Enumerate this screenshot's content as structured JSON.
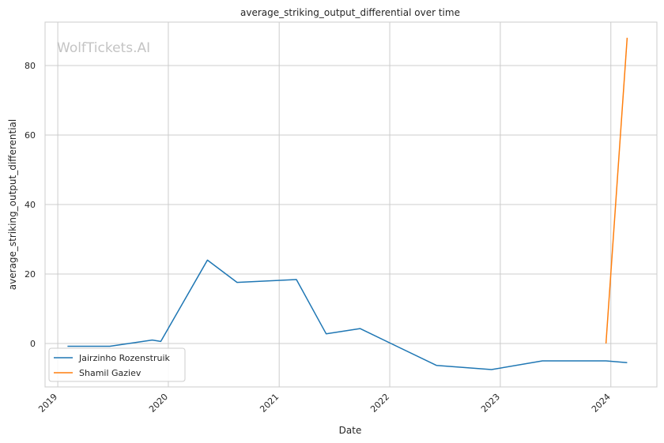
{
  "chart_data": {
    "type": "line",
    "title": "average_striking_output_differential over time",
    "xlabel": "Date",
    "ylabel": "average_striking_output_differential",
    "watermark": "WolfTickets.AI",
    "x_ticks": [
      "2019",
      "2020",
      "2021",
      "2022",
      "2023",
      "2024"
    ],
    "y_ticks": [
      "0",
      "20",
      "40",
      "60",
      "80"
    ],
    "xlim": [
      "2018-11-20",
      "2024-06-01"
    ],
    "ylim": [
      -12.5,
      92.5
    ],
    "grid": true,
    "legend_position": "lower-left",
    "series": [
      {
        "name": "Jairzinho Rozenstruik",
        "color": "#1f77b4",
        "points": [
          [
            "2019-02-02",
            -0.8
          ],
          [
            "2019-06-22",
            -0.8
          ],
          [
            "2019-11-09",
            1.0
          ],
          [
            "2019-12-07",
            0.6
          ],
          [
            "2020-05-09",
            24.0
          ],
          [
            "2020-08-15",
            17.6
          ],
          [
            "2021-02-27",
            18.4
          ],
          [
            "2021-06-05",
            2.8
          ],
          [
            "2021-09-25",
            4.3
          ],
          [
            "2022-06-04",
            -6.3
          ],
          [
            "2022-12-03",
            -7.5
          ],
          [
            "2023-05-20",
            -5.0
          ],
          [
            "2023-12-16",
            -5.0
          ],
          [
            "2024-02-24",
            -5.5
          ]
        ]
      },
      {
        "name": "Shamil Gaziev",
        "color": "#ff7f0e",
        "points": [
          [
            "2023-12-16",
            0.0
          ],
          [
            "2024-02-24",
            88.0
          ]
        ]
      }
    ]
  }
}
